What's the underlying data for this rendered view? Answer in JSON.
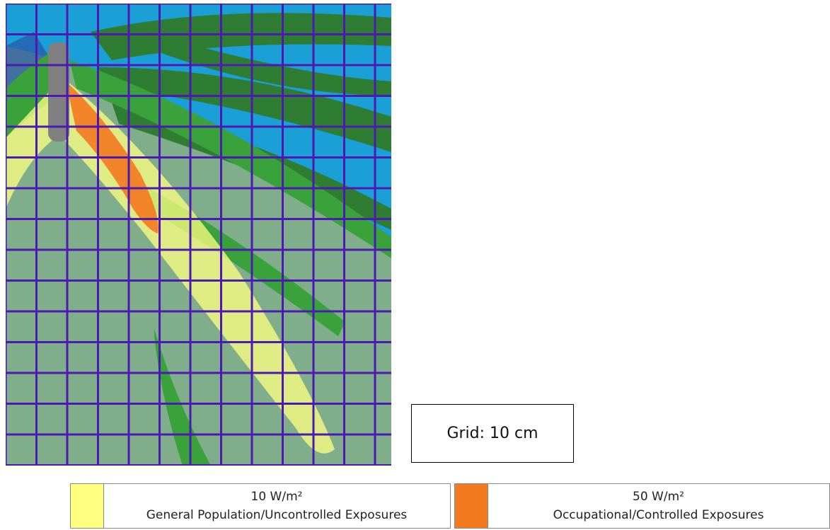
{
  "grid_note": {
    "label": "Grid: 10 cm"
  },
  "legend": [
    {
      "value_label": "10 W/m²",
      "description": "General Population/Uncontrolled Exposures",
      "color": "#ffff80"
    },
    {
      "value_label": "50 W/m²",
      "description": "Occupational/Controlled Exposures",
      "color": "#f47a20"
    }
  ],
  "colors": {
    "background": "#80ae8a",
    "sky_band": "#1a9fd6",
    "dark_green": "#2e7d32",
    "green": "#3aa23a",
    "antenna": "#808080",
    "grid_lines": "#4d19b3"
  }
}
